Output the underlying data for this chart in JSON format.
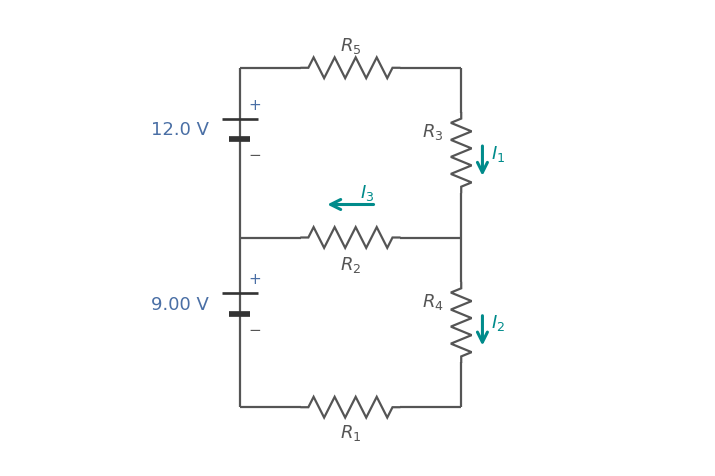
{
  "bg_color": "#ffffff",
  "wire_color": "#555555",
  "resistor_color": "#555555",
  "battery_color": "#333333",
  "arrow_color": "#008B8B",
  "label_color": "#4a6fa5",
  "current_color": "#008B8B",
  "wire_lw": 1.6,
  "resistor_lw": 1.6,
  "figsize": [
    7.15,
    4.77
  ],
  "dpi": 100,
  "voltage_12": "12.0 V",
  "voltage_9": "9.00 V"
}
